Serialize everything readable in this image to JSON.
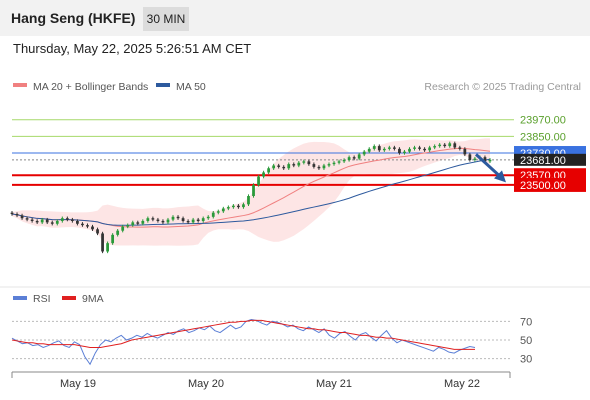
{
  "header": {
    "title": "Hang Seng (HKFE)",
    "timeframe": "30 MIN"
  },
  "timestamp": "Thursday, May 22, 2025 5:26:51 AM CET",
  "legend": {
    "items": [
      {
        "label": "MA 20 + Bollinger Bands",
        "color": "#f08080"
      },
      {
        "label": "MA 50",
        "color": "#2d5a9e"
      }
    ],
    "credit": "Research © 2025 Trading Central"
  },
  "rsi_legend": {
    "items": [
      {
        "label": "RSI",
        "color": "#5b7fd6"
      },
      {
        "label": "9MA",
        "color": "#e02020"
      }
    ]
  },
  "colors": {
    "green_line": "#a6d96a",
    "pivot_blue": "#3a72e0",
    "support_red": "#e60000",
    "bull_candle": "#2a9a3a",
    "bear_candle": "#333333",
    "band_fill": "#fde0e0",
    "arrow": "#2d5a9e"
  },
  "chart_data": [
    {
      "type": "candlestick",
      "title": "Hang Seng (HKFE)",
      "xlabel": "",
      "ylabel": "",
      "ylim": [
        22800,
        24170
      ],
      "x_ticks": [
        "May 19",
        "May 20",
        "May 21",
        "May 22"
      ],
      "level_lines": [
        {
          "value": 23970.0,
          "label": "23970.00",
          "role": "resistance",
          "color": "#a6d96a"
        },
        {
          "value": 23850.0,
          "label": "23850.00",
          "role": "resistance",
          "color": "#a6d96a"
        },
        {
          "value": 23730.0,
          "label": "23730.00",
          "role": "pivot",
          "color": "#3a72e0"
        },
        {
          "value": 23570.0,
          "label": "23570.00",
          "role": "support",
          "color": "#e60000"
        },
        {
          "value": 23500.0,
          "label": "23500.00",
          "role": "support",
          "color": "#e60000"
        }
      ],
      "last_price": {
        "value": 23681.0,
        "label": "23681.00"
      },
      "close_series": [
        23290,
        23280,
        23260,
        23250,
        23240,
        23230,
        23250,
        23230,
        23220,
        23240,
        23260,
        23250,
        23240,
        23220,
        23210,
        23200,
        23180,
        23150,
        23020,
        23080,
        23140,
        23170,
        23200,
        23210,
        23230,
        23220,
        23240,
        23260,
        23250,
        23240,
        23230,
        23250,
        23270,
        23260,
        23240,
        23230,
        23250,
        23240,
        23260,
        23270,
        23300,
        23310,
        23330,
        23340,
        23350,
        23340,
        23360,
        23420,
        23500,
        23560,
        23590,
        23620,
        23640,
        23630,
        23620,
        23650,
        23640,
        23660,
        23670,
        23650,
        23630,
        23620,
        23640,
        23650,
        23660,
        23670,
        23680,
        23700,
        23690,
        23720,
        23740,
        23760,
        23780,
        23750,
        23760,
        23770,
        23760,
        23730,
        23740,
        23760,
        23770,
        23760,
        23750,
        23770,
        23780,
        23790,
        23780,
        23800,
        23770,
        23760,
        23720,
        23680,
        23690,
        23700,
        23670,
        23681
      ],
      "open_series": [
        23300,
        23290,
        23280,
        23260,
        23250,
        23240,
        23230,
        23250,
        23230,
        23220,
        23240,
        23260,
        23250,
        23240,
        23220,
        23210,
        23200,
        23180,
        23150,
        23020,
        23080,
        23140,
        23170,
        23200,
        23210,
        23230,
        23220,
        23240,
        23260,
        23250,
        23240,
        23230,
        23250,
        23270,
        23260,
        23240,
        23230,
        23250,
        23240,
        23260,
        23270,
        23300,
        23310,
        23330,
        23340,
        23350,
        23340,
        23360,
        23420,
        23500,
        23560,
        23590,
        23620,
        23640,
        23630,
        23620,
        23650,
        23640,
        23660,
        23670,
        23650,
        23630,
        23620,
        23640,
        23650,
        23660,
        23670,
        23680,
        23700,
        23690,
        23720,
        23740,
        23760,
        23780,
        23750,
        23760,
        23770,
        23760,
        23730,
        23740,
        23760,
        23770,
        23760,
        23750,
        23770,
        23780,
        23790,
        23780,
        23800,
        23770,
        23760,
        23720,
        23680,
        23690,
        23700,
        23670
      ]
    },
    {
      "type": "line",
      "title": "RSI",
      "xlabel": "",
      "ylabel": "",
      "ylim": [
        20,
        80
      ],
      "y_ticks": [
        70,
        50,
        30
      ],
      "series": [
        {
          "name": "RSI",
          "values": [
            52,
            49,
            46,
            47,
            44,
            45,
            42,
            44,
            47,
            49,
            44,
            42,
            48,
            45,
            32,
            24,
            36,
            45,
            50,
            48,
            52,
            55,
            50,
            52,
            55,
            53,
            57,
            54,
            52,
            55,
            58,
            56,
            60,
            62,
            58,
            60,
            63,
            61,
            65,
            60,
            58,
            62,
            66,
            62,
            64,
            70,
            72,
            71,
            68,
            66,
            70,
            69,
            67,
            64,
            66,
            62,
            60,
            64,
            61,
            58,
            62,
            55,
            52,
            57,
            59,
            54,
            50,
            56,
            58,
            53,
            49,
            55,
            60,
            52,
            47,
            50,
            48,
            46,
            44,
            42,
            40,
            38,
            42,
            40,
            37,
            36,
            39,
            41,
            43,
            42
          ]
        },
        {
          "name": "9MA",
          "values": [
            50,
            49,
            48,
            47,
            47,
            46,
            46,
            45,
            45,
            45,
            45,
            45,
            45,
            44,
            43,
            42,
            42,
            42,
            43,
            44,
            45,
            46,
            48,
            50,
            51,
            52,
            53,
            54,
            55,
            56,
            57,
            58,
            59,
            60,
            61,
            62,
            63,
            64,
            65,
            66,
            67,
            68,
            69,
            69,
            70,
            70,
            71,
            71,
            71,
            70,
            69,
            68,
            67,
            66,
            65,
            64,
            63,
            62,
            62,
            61,
            61,
            60,
            59,
            58,
            58,
            57,
            56,
            55,
            55,
            54,
            53,
            53,
            52,
            52,
            51,
            50,
            49,
            48,
            47,
            46,
            45,
            44,
            43,
            42,
            41,
            40,
            40,
            40,
            40,
            40
          ]
        }
      ]
    }
  ]
}
